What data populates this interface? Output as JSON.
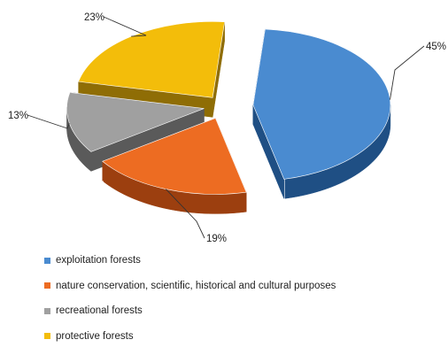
{
  "chart_data": {
    "type": "pie",
    "title": "",
    "categories": [
      "exploitation forests",
      "nature conservation, scientific, historical and cultural purposes",
      "recreational forests",
      "protective forests"
    ],
    "values": [
      45,
      19,
      13,
      23
    ],
    "labels": [
      "45%",
      "19%",
      "13%",
      "23%"
    ],
    "legend_position": "bottom",
    "exploded": true,
    "style_3d": true,
    "colors": {
      "exploitation forests": "#4a8bd0",
      "nature conservation, scientific, historical and cultural purposes": "#ed6c22",
      "recreational forests": "#a0a0a0",
      "protective forests": "#f3bd0a"
    },
    "side_colors": {
      "exploitation forests": "#1f4f84",
      "nature conservation, scientific, historical and cultural purposes": "#9c3f0f",
      "recreational forests": "#5a5a5a",
      "protective forests": "#8f6d05"
    }
  }
}
